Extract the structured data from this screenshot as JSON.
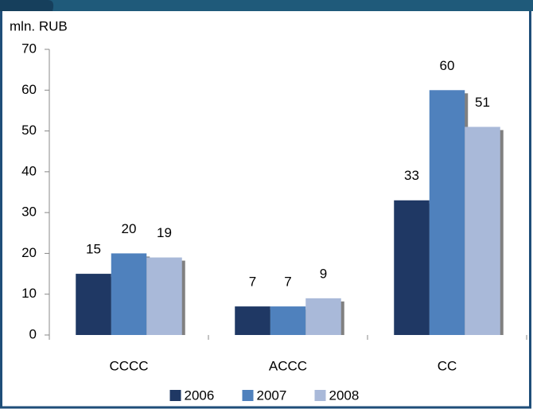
{
  "chart_data": {
    "type": "bar",
    "y_label": "mln. RUB",
    "categories": [
      "CCCC",
      "ACCC",
      "CC"
    ],
    "series": [
      {
        "name": "2006",
        "color": "#1f3864",
        "values": [
          15,
          7,
          33
        ]
      },
      {
        "name": "2007",
        "color": "#4f81bd",
        "values": [
          20,
          7,
          60
        ]
      },
      {
        "name": "2008",
        "color": "#a9b9d9",
        "values": [
          19,
          9,
          51
        ]
      }
    ],
    "ylim": [
      0,
      70
    ],
    "yticks": [
      0,
      10,
      20,
      30,
      40,
      50,
      60,
      70
    ],
    "legend": "bottom"
  }
}
